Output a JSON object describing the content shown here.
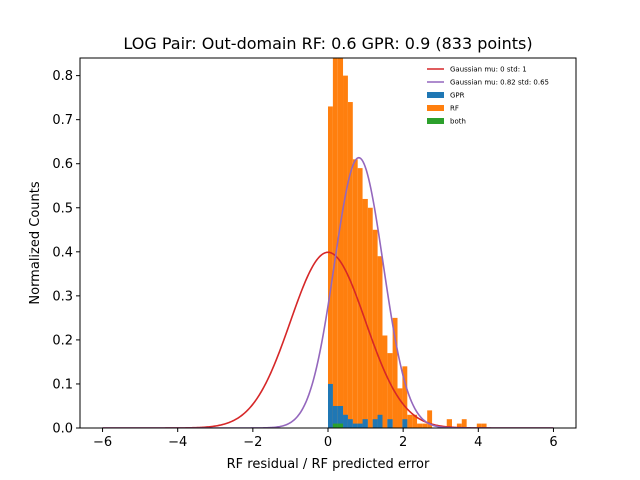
{
  "chart_data": {
    "type": "bar",
    "title": "LOG Pair: Out-domain RF: 0.6 GPR: 0.9 (833 points)",
    "xlabel": "RF residual / RF predicted error",
    "ylabel": "Normalized Counts",
    "xlim": [
      -6.6,
      6.6
    ],
    "ylim": [
      0,
      0.84
    ],
    "x_ticks": [
      "−6",
      "−4",
      "−2",
      "0",
      "2",
      "4",
      "6"
    ],
    "x_tick_values": [
      -6,
      -4,
      -2,
      0,
      2,
      4,
      6
    ],
    "y_ticks": [
      "0.0",
      "0.1",
      "0.2",
      "0.3",
      "0.4",
      "0.5",
      "0.6",
      "0.7",
      "0.8"
    ],
    "y_tick_values": [
      0,
      0.1,
      0.2,
      0.3,
      0.4,
      0.5,
      0.6,
      0.7,
      0.8
    ],
    "legend_position": "top-right",
    "legend": [
      {
        "label": "Gaussian mu: 0 std: 1",
        "kind": "line",
        "color": "#d62728"
      },
      {
        "label": "Gaussian mu: 0.82 std: 0.65",
        "kind": "line",
        "color": "#9467bd"
      },
      {
        "label": "GPR",
        "kind": "patch",
        "color": "#1f77b4"
      },
      {
        "label": "RF",
        "kind": "patch",
        "color": "#ff7f0e"
      },
      {
        "label": "both",
        "kind": "patch",
        "color": "#2ca02c"
      }
    ],
    "histograms": [
      {
        "name": "RF",
        "color": "#ff7f0e",
        "bins": [
          [
            0.0,
            0.13,
            0.73
          ],
          [
            0.13,
            0.26,
            0.85
          ],
          [
            0.26,
            0.4,
            0.85
          ],
          [
            0.4,
            0.53,
            0.8
          ],
          [
            0.53,
            0.66,
            0.74
          ],
          [
            0.66,
            0.79,
            0.61
          ],
          [
            0.79,
            0.92,
            0.59
          ],
          [
            0.92,
            1.06,
            0.52
          ],
          [
            1.06,
            1.19,
            0.5
          ],
          [
            1.19,
            1.32,
            0.45
          ],
          [
            1.32,
            1.45,
            0.39
          ],
          [
            1.45,
            1.58,
            0.21
          ],
          [
            1.58,
            1.72,
            0.17
          ],
          [
            1.72,
            1.85,
            0.25
          ],
          [
            1.85,
            1.98,
            0.09
          ],
          [
            1.98,
            2.11,
            0.14
          ],
          [
            2.11,
            2.24,
            0.03
          ],
          [
            2.24,
            2.37,
            0.03
          ],
          [
            2.37,
            2.51,
            0.01
          ],
          [
            2.51,
            2.64,
            0.01
          ],
          [
            2.64,
            2.77,
            0.04
          ],
          [
            3.16,
            3.3,
            0.02
          ],
          [
            3.43,
            3.56,
            0.01
          ],
          [
            3.56,
            3.69,
            0.02
          ],
          [
            3.96,
            4.09,
            0.01
          ],
          [
            4.09,
            4.22,
            0.01
          ]
        ]
      },
      {
        "name": "GPR",
        "color": "#1f77b4",
        "bins": [
          [
            0.0,
            0.13,
            0.1
          ],
          [
            0.13,
            0.26,
            0.05
          ],
          [
            0.26,
            0.4,
            0.05
          ],
          [
            0.4,
            0.53,
            0.03
          ],
          [
            0.53,
            0.66,
            0.02
          ],
          [
            0.66,
            0.79,
            0.01
          ],
          [
            0.79,
            0.92,
            0.01
          ],
          [
            0.92,
            1.06,
            0.02
          ],
          [
            1.19,
            1.32,
            0.02
          ],
          [
            1.32,
            1.45,
            0.03
          ],
          [
            1.58,
            1.72,
            0.02
          ],
          [
            1.98,
            2.11,
            0.02
          ]
        ]
      },
      {
        "name": "both",
        "color": "#2ca02c",
        "bins": [
          [
            0.13,
            0.26,
            0.01
          ],
          [
            0.26,
            0.4,
            0.01
          ]
        ]
      }
    ],
    "curves": [
      {
        "name": "Gaussian mu: 0 std: 1",
        "color": "#d62728",
        "mu": 0,
        "std": 1,
        "x_range": [
          -6,
          6
        ]
      },
      {
        "name": "Gaussian mu: 0.82 std: 0.65",
        "color": "#9467bd",
        "mu": 0.82,
        "std": 0.65,
        "x_range": [
          -6,
          6
        ]
      }
    ]
  }
}
